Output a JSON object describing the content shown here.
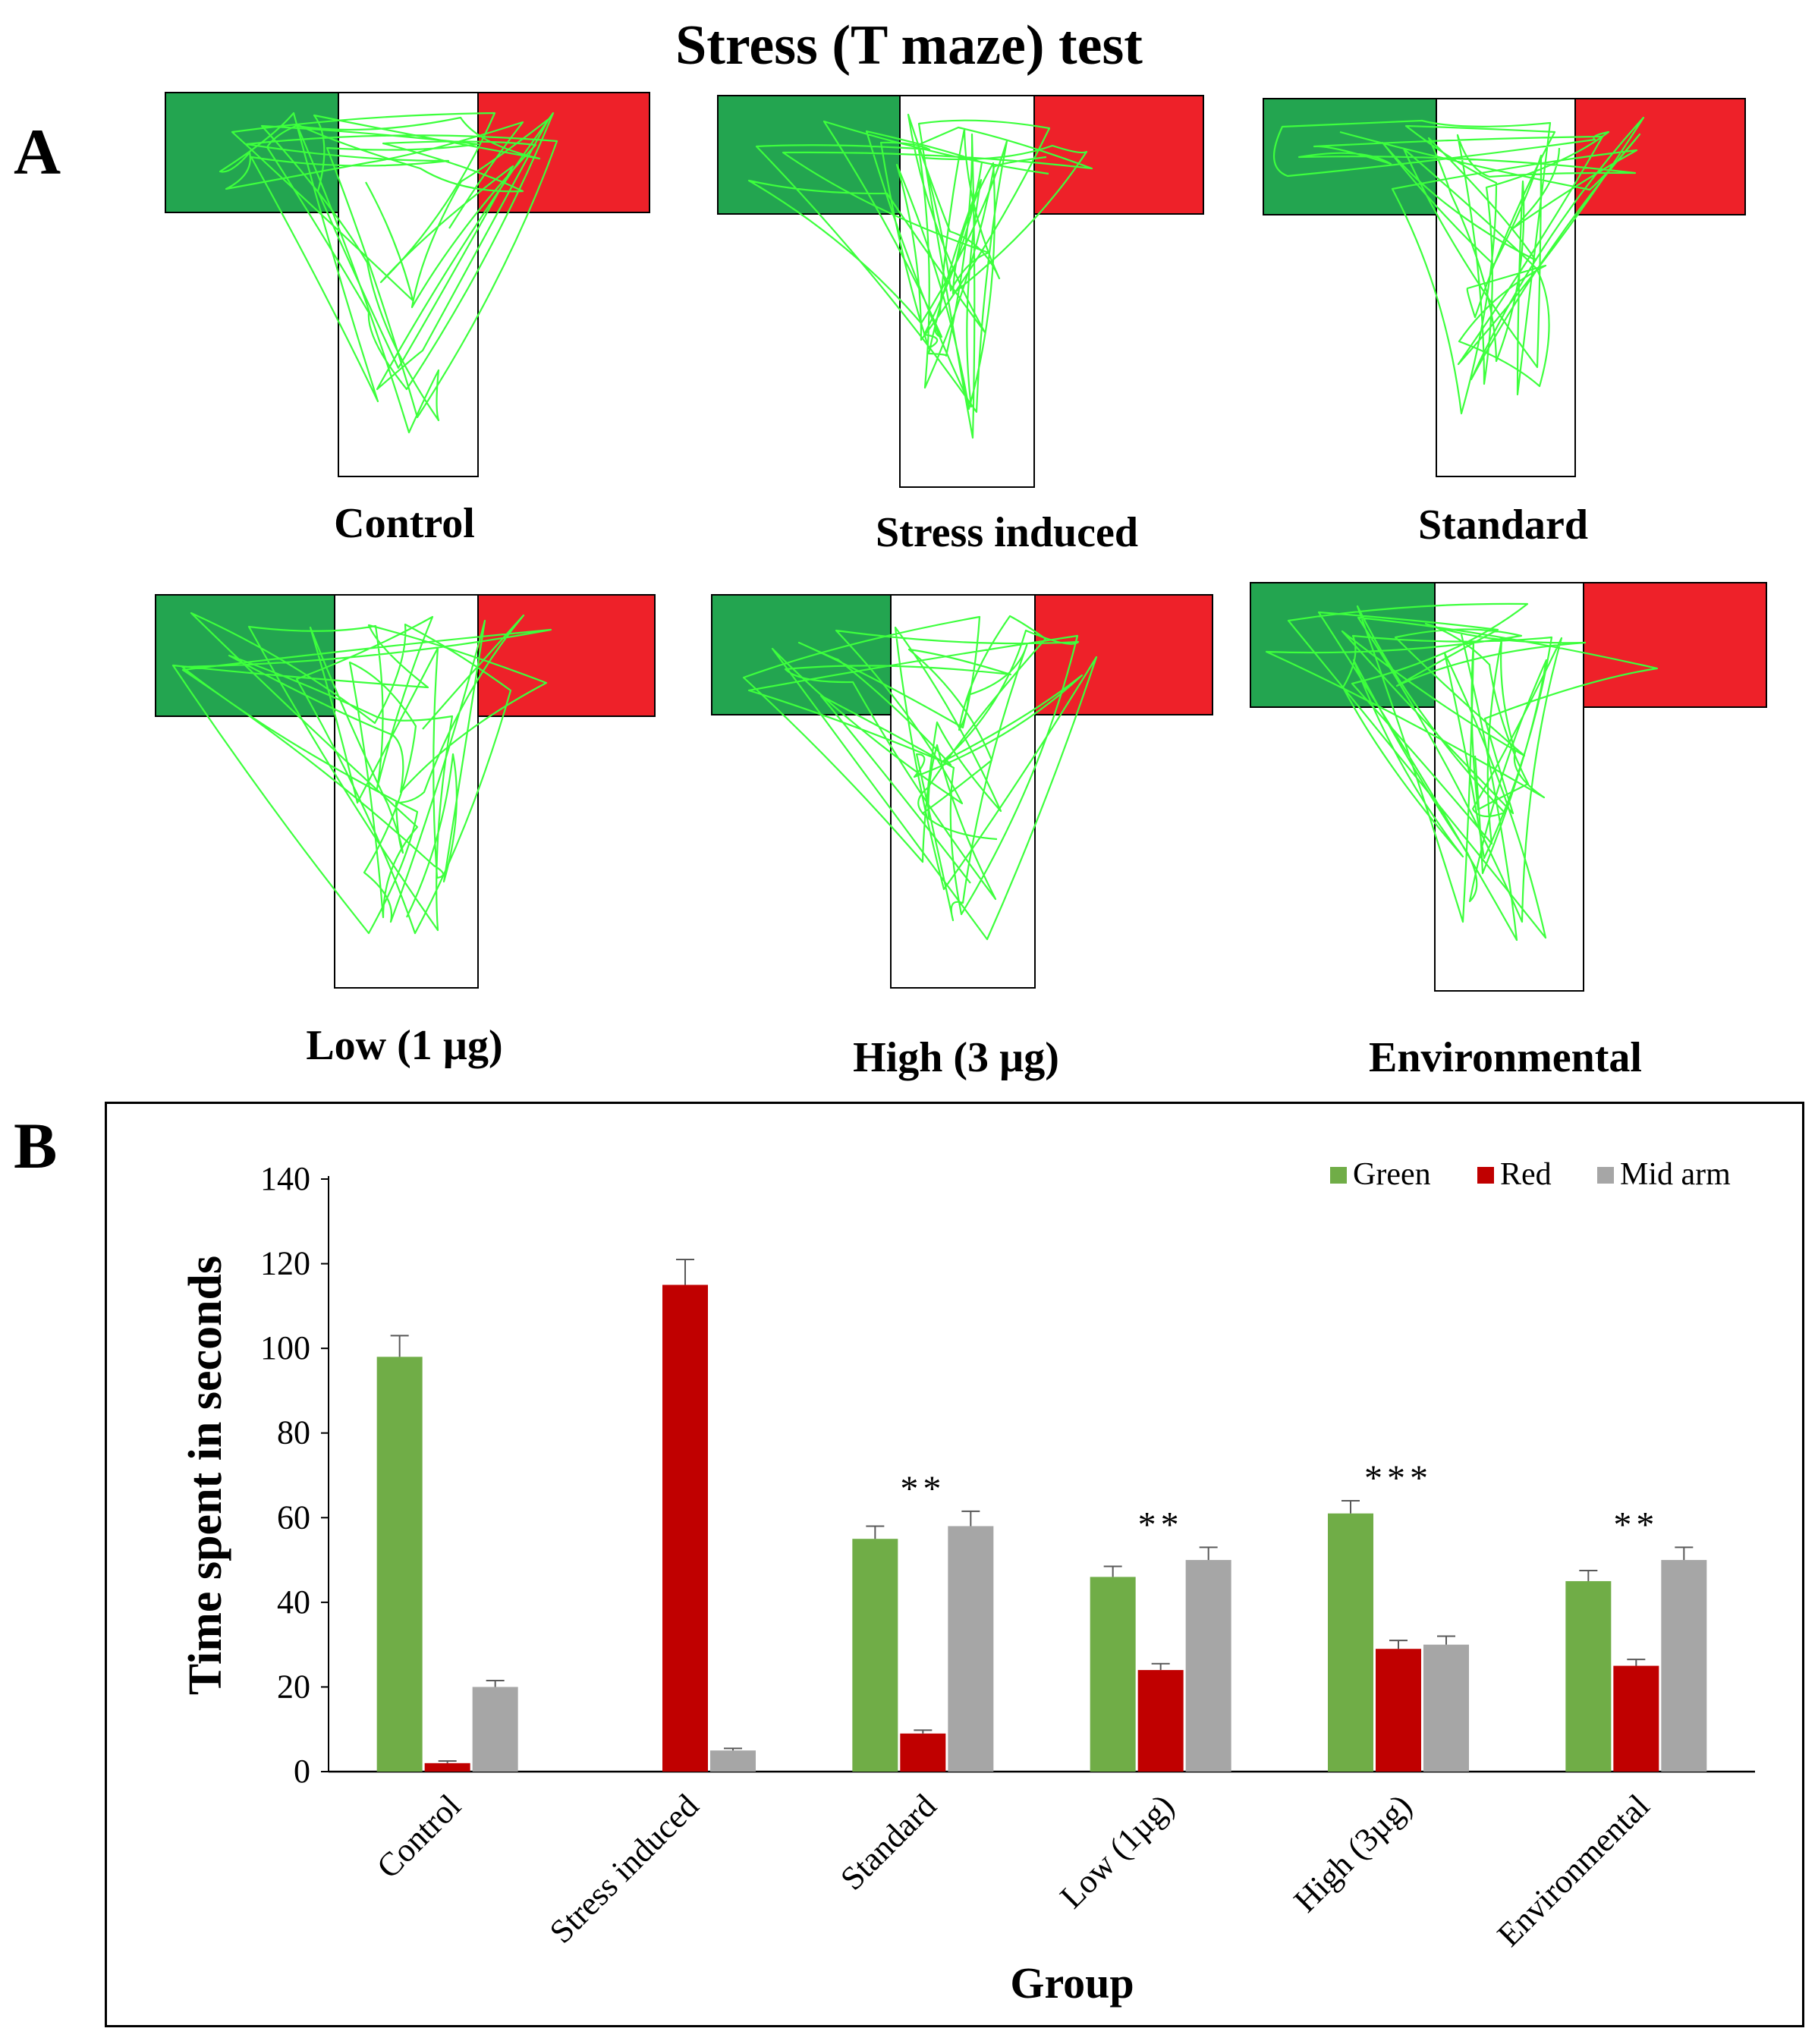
{
  "figure_title": "Stress (T maze) test",
  "panel_a_label": "A",
  "panel_b_label": "B",
  "arm_colors": {
    "green": "#23a550",
    "red": "#ee2129",
    "track": "#3dff3d"
  },
  "maze_panels": [
    {
      "label": "Control"
    },
    {
      "label": "Stress induced"
    },
    {
      "label": "Standard"
    },
    {
      "label": "Low (1 µg)"
    },
    {
      "label": "High (3 µg)"
    },
    {
      "label": "Environmental"
    }
  ],
  "chart_data": {
    "type": "bar",
    "title": "",
    "xlabel": "Group",
    "ylabel": "Time spent in seconds",
    "ylim": [
      0,
      140
    ],
    "yticks": [
      0,
      20,
      40,
      60,
      80,
      100,
      120,
      140
    ],
    "categories": [
      "Control",
      "Stress induced",
      "Standard",
      "Low (1µg)",
      "High (3µg)",
      "Environmental"
    ],
    "series": [
      {
        "name": "Green",
        "color": "#70ad47",
        "values": [
          98,
          0,
          55,
          46,
          61,
          45
        ],
        "errors": [
          5,
          0,
          3,
          2.5,
          3,
          2.5
        ]
      },
      {
        "name": "Red",
        "color": "#c00000",
        "values": [
          2,
          115,
          9,
          24,
          29,
          25
        ],
        "errors": [
          0.5,
          6,
          0.8,
          1.5,
          2,
          1.5
        ]
      },
      {
        "name": "Mid arm",
        "color": "#a6a6a6",
        "values": [
          20,
          5,
          58,
          50,
          30,
          50
        ],
        "errors": [
          1.5,
          0.5,
          3.5,
          3,
          2,
          3
        ]
      }
    ],
    "annotations": [
      "",
      "",
      "**",
      "**",
      "***",
      "**"
    ],
    "legend_position": "top-right"
  }
}
